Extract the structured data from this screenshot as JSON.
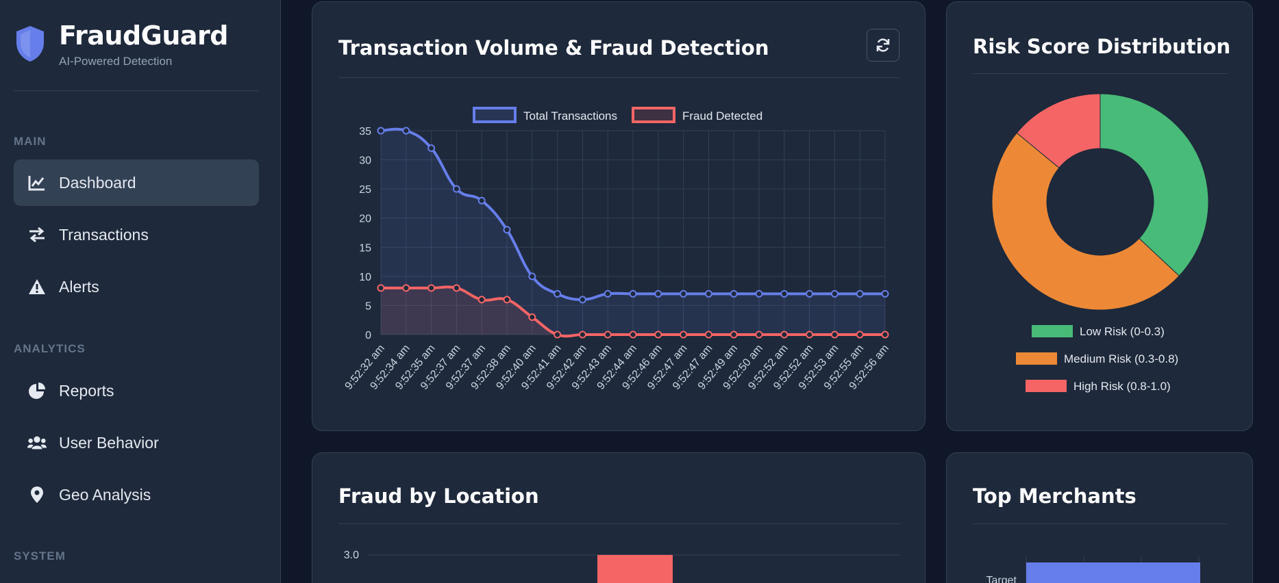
{
  "brand": {
    "title": "FraudGuard",
    "subtitle": "AI-Powered Detection"
  },
  "sidebar": {
    "sections": [
      {
        "label": "MAIN"
      },
      {
        "label": "ANALYTICS"
      },
      {
        "label": "SYSTEM"
      }
    ],
    "items": [
      {
        "label": "Dashboard",
        "icon": "chart-line-icon",
        "active": true
      },
      {
        "label": "Transactions",
        "icon": "exchange-arrows-icon"
      },
      {
        "label": "Alerts",
        "icon": "warning-triangle-icon"
      },
      {
        "label": "Reports",
        "icon": "pie-chart-icon"
      },
      {
        "label": "User Behavior",
        "icon": "users-icon"
      },
      {
        "label": "Geo Analysis",
        "icon": "map-pin-icon"
      }
    ]
  },
  "cards": {
    "volume": {
      "title": "Transaction Volume & Fraud Detection",
      "refresh_icon": "refresh-icon"
    },
    "risk": {
      "title": "Risk Score Distribution"
    },
    "location": {
      "title": "Fraud by Location"
    },
    "merchants": {
      "title": "Top Merchants"
    }
  },
  "colors": {
    "accent": "#667eea",
    "fraud": "#f56565",
    "low": "#48bb78",
    "medium": "#ed8936",
    "high": "#f56565",
    "card_bg": "#1e293b",
    "page_bg": "#0f1729"
  },
  "chart_data": [
    {
      "type": "line",
      "legend_position": "top",
      "grid": true,
      "x": [
        "9:52:32 am",
        "9:52:34 am",
        "9:52:35 am",
        "9:52:37 am",
        "9:52:37 am",
        "9:52:38 am",
        "9:52:40 am",
        "9:52:41 am",
        "9:52:42 am",
        "9:52:43 am",
        "9:52:44 am",
        "9:52:46 am",
        "9:52:47 am",
        "9:52:47 am",
        "9:52:49 am",
        "9:52:50 am",
        "9:52:52 am",
        "9:52:52 am",
        "9:52:53 am",
        "9:52:55 am",
        "9:52:56 am"
      ],
      "ylim": [
        0,
        35
      ],
      "yticks": [
        0,
        5,
        10,
        15,
        20,
        25,
        30,
        35
      ],
      "series": [
        {
          "name": "Total Transactions",
          "color": "#667eea",
          "values": [
            35,
            35,
            32,
            25,
            23,
            18,
            10,
            7,
            6,
            7,
            7,
            7,
            7,
            7,
            7,
            7,
            7,
            7,
            7,
            7,
            7
          ]
        },
        {
          "name": "Fraud Detected",
          "color": "#f56565",
          "values": [
            8,
            8,
            8,
            8,
            6,
            6,
            3,
            0,
            0,
            0,
            0,
            0,
            0,
            0,
            0,
            0,
            0,
            0,
            0,
            0,
            0
          ]
        }
      ]
    },
    {
      "type": "pie",
      "legend_position": "bottom",
      "categories": [
        "Low Risk (0-0.3)",
        "Medium Risk (0.3-0.8)",
        "High Risk (0.8-1.0)"
      ],
      "values": [
        37,
        49,
        14
      ],
      "colors": [
        "#48bb78",
        "#ed8936",
        "#f56565"
      ]
    },
    {
      "type": "bar",
      "yticks_visible": [
        "3.0"
      ],
      "values": [
        3.0
      ],
      "color": "#f56565"
    },
    {
      "type": "bar",
      "orientation": "horizontal",
      "categories": [
        "Target"
      ],
      "color": "#667eea"
    }
  ]
}
